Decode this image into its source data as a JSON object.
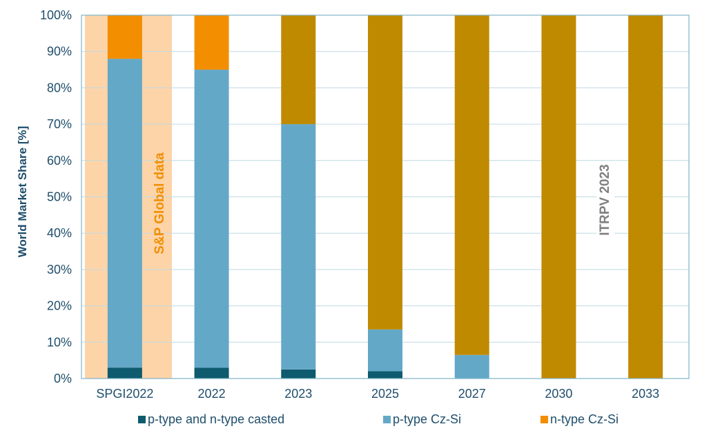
{
  "chart_data": {
    "type": "bar",
    "stacked": true,
    "categories": [
      "SPGI2022",
      "2022",
      "2023",
      "2025",
      "2027",
      "2030",
      "2033"
    ],
    "series": [
      {
        "name": "p-type and n-type casted",
        "color": "#0e5a6e",
        "values": [
          3,
          3,
          2.5,
          2,
          0,
          0,
          0
        ]
      },
      {
        "name": "p-type Cz-Si",
        "color": "#64a8c8",
        "values": [
          85,
          82,
          67.5,
          11.5,
          6.5,
          0,
          0
        ]
      },
      {
        "name": "n-type Cz-Si",
        "color": "#f28e00",
        "values": [
          12,
          15,
          0,
          0,
          0,
          0,
          0
        ]
      },
      {
        "name": "",
        "color": "#c08a00",
        "values": [
          0,
          0,
          30,
          86.5,
          93.5,
          100,
          100
        ]
      }
    ],
    "ylabel": "World Market Share [%]",
    "ylim": [
      0,
      100
    ],
    "yticks": [
      "0%",
      "10%",
      "20%",
      "30%",
      "40%",
      "50%",
      "60%",
      "70%",
      "80%",
      "90%",
      "100%"
    ],
    "grid": true,
    "legend_position": "bottom",
    "annotations": [
      {
        "text": "S&P Global data",
        "color": "#f28e00"
      },
      {
        "text": "ITRPV 2023",
        "color": "#808080"
      }
    ],
    "highlight_band_color": "#fdd4a8"
  }
}
